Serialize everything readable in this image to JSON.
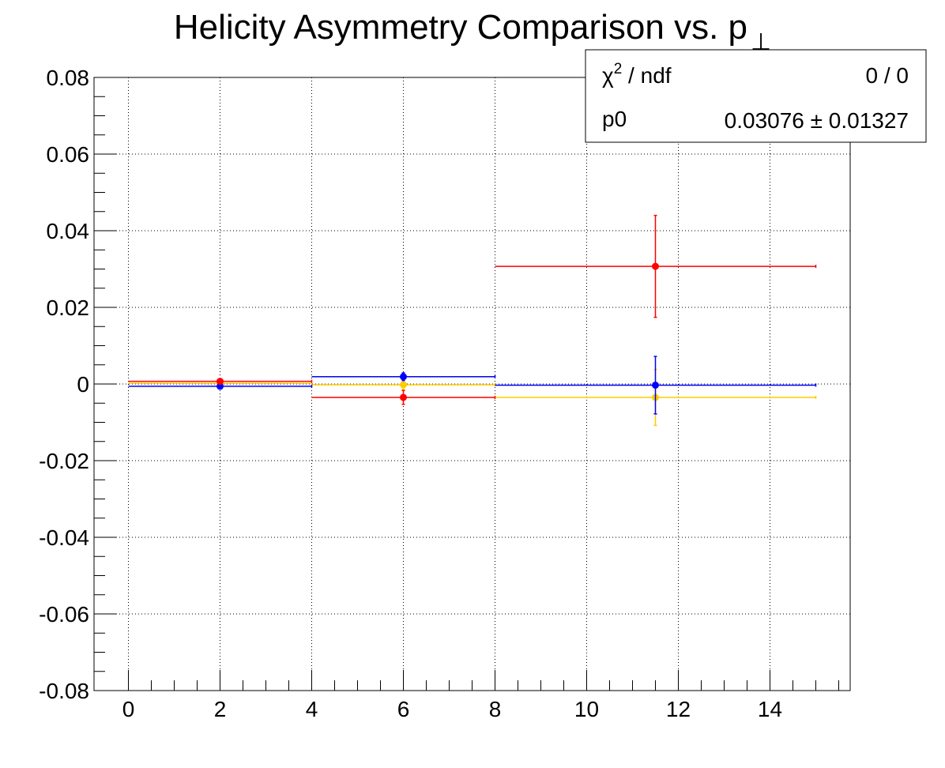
{
  "chart_data": {
    "type": "scatter",
    "title": "Helicity Asymmetry Comparison vs. p",
    "title_subscript_glyph": "⊥",
    "xlabel": "",
    "ylabel": "",
    "xlim": [
      -0.75,
      15.75
    ],
    "ylim": [
      -0.08,
      0.08
    ],
    "x_ticks": [
      0,
      2,
      4,
      6,
      8,
      10,
      12,
      14
    ],
    "x_tick_labels": [
      "0",
      "2",
      "4",
      "6",
      "8",
      "10",
      "12",
      "14"
    ],
    "y_ticks": [
      0.08,
      0.06,
      0.04,
      0.02,
      0,
      -0.02,
      -0.04,
      -0.06,
      -0.08
    ],
    "y_tick_labels": [
      "0.08",
      "0.06",
      "0.04",
      "0.02",
      "0",
      "-0.02",
      "-0.04",
      "-0.06",
      "-0.08"
    ],
    "grid": true,
    "series": [
      {
        "color": "#ffcc00",
        "points": [
          {
            "x": 2,
            "y": 0.0002,
            "xlo": 0,
            "xhi": 4,
            "yerr": 0.0006
          },
          {
            "x": 6,
            "y": -0.0002,
            "xlo": 4,
            "xhi": 8,
            "yerr": 0.0012
          },
          {
            "x": 11.5,
            "y": -0.0035,
            "xlo": 8,
            "xhi": 15,
            "yerr": 0.0073
          }
        ]
      },
      {
        "color": "#0000ff",
        "points": [
          {
            "x": 2,
            "y": -0.0006,
            "xlo": 0,
            "xhi": 4,
            "yerr": 0.0005
          },
          {
            "x": 6,
            "y": 0.0019,
            "xlo": 4,
            "xhi": 8,
            "yerr": 0.001
          },
          {
            "x": 11.5,
            "y": -0.0003,
            "xlo": 8,
            "xhi": 15,
            "yerr": 0.0075
          }
        ]
      },
      {
        "color": "#ff0000",
        "points": [
          {
            "x": 2,
            "y": 0.0007,
            "xlo": 0,
            "xhi": 4,
            "yerr": 0.0005
          },
          {
            "x": 6,
            "y": -0.0035,
            "xlo": 4,
            "xhi": 8,
            "yerr": 0.0018
          },
          {
            "x": 11.5,
            "y": 0.0307,
            "xlo": 8,
            "xhi": 15,
            "yerr": 0.0133
          }
        ]
      }
    ],
    "stats_box": {
      "chi2_label": "χ",
      "chi2_sup": "2",
      "chi2_suffix": " / ndf",
      "chi2_value": "0 / 0",
      "p0_label": "p0",
      "p0_value": "0.03076 ± 0.01327"
    }
  }
}
